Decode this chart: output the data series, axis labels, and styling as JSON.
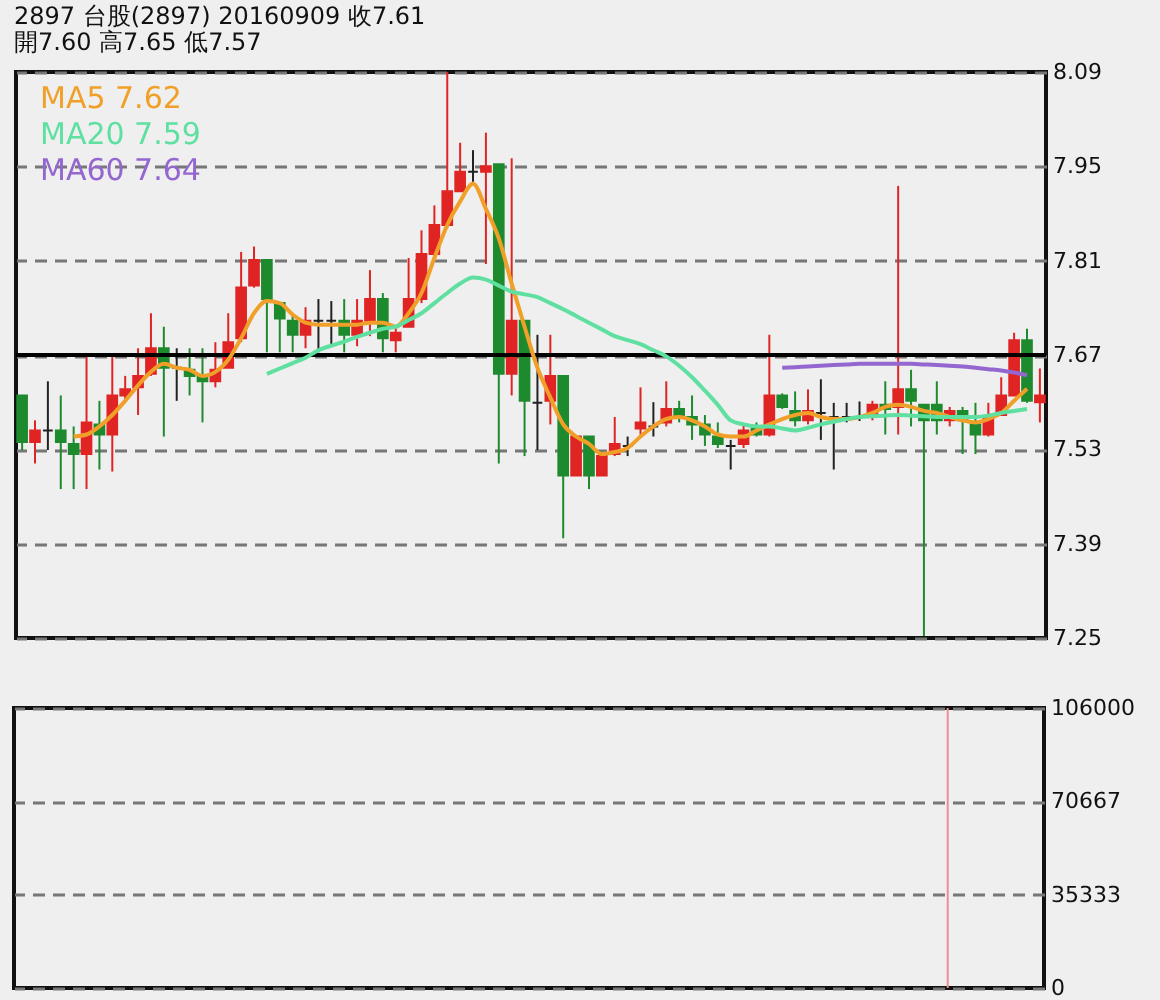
{
  "chart_data": [
    {
      "type": "candlestick",
      "title": "2897  台股(2897) 20160909    收7.61",
      "subtitle": "開7.60    高7.65    低7.57",
      "categories": [
        null,
        null,
        null,
        null,
        null,
        null,
        null,
        null,
        null,
        null,
        null,
        null,
        null,
        null,
        null,
        null,
        null,
        null,
        null,
        null,
        null,
        null,
        null,
        null,
        null,
        null,
        null,
        null,
        null,
        null,
        null,
        null,
        null,
        null,
        null,
        null,
        null,
        null,
        null,
        null,
        null,
        null,
        null,
        null,
        null,
        null,
        null,
        null,
        null,
        null,
        null,
        null,
        null,
        null,
        null,
        null,
        null,
        null,
        null,
        null,
        null,
        null,
        null,
        null,
        null,
        null,
        null,
        null,
        null,
        null,
        null,
        null,
        null,
        null,
        null,
        null,
        null,
        null,
        null,
        null
      ],
      "ohlc": [
        [
          7.61,
          7.61,
          7.529,
          7.541
        ],
        [
          7.541,
          7.573,
          7.509,
          7.558
        ],
        [
          7.558,
          7.631,
          7.529,
          7.558
        ],
        [
          7.558,
          7.61,
          7.471,
          7.541
        ],
        [
          7.538,
          7.564,
          7.471,
          7.523
        ],
        [
          7.523,
          7.668,
          7.471,
          7.57
        ],
        [
          7.567,
          7.602,
          7.5,
          7.552
        ],
        [
          7.552,
          7.668,
          7.497,
          7.61
        ],
        [
          7.61,
          7.639,
          7.602,
          7.619
        ],
        [
          7.622,
          7.68,
          7.581,
          7.639
        ],
        [
          7.642,
          7.732,
          7.639,
          7.68
        ],
        [
          7.68,
          7.712,
          7.549,
          7.651
        ],
        [
          7.651,
          7.68,
          7.602,
          7.651
        ],
        [
          7.648,
          7.68,
          7.61,
          7.639
        ],
        [
          7.639,
          7.68,
          7.57,
          7.631
        ],
        [
          7.631,
          7.689,
          7.622,
          7.648
        ],
        [
          7.651,
          7.732,
          7.651,
          7.689
        ],
        [
          7.695,
          7.823,
          7.689,
          7.77
        ],
        [
          7.773,
          7.831,
          7.77,
          7.811
        ],
        [
          7.811,
          7.811,
          7.674,
          7.753
        ],
        [
          7.747,
          7.747,
          7.674,
          7.724
        ],
        [
          7.721,
          7.732,
          7.674,
          7.7
        ],
        [
          7.7,
          7.741,
          7.68,
          7.721
        ],
        [
          7.721,
          7.753,
          7.674,
          7.721
        ],
        [
          7.721,
          7.75,
          7.683,
          7.721
        ],
        [
          7.721,
          7.753,
          7.674,
          7.7
        ],
        [
          7.7,
          7.753,
          7.683,
          7.721
        ],
        [
          7.721,
          7.796,
          7.698,
          7.753
        ],
        [
          7.753,
          7.762,
          7.674,
          7.695
        ],
        [
          7.692,
          7.712,
          7.674,
          7.703
        ],
        [
          7.712,
          7.814,
          7.712,
          7.753
        ],
        [
          7.753,
          7.855,
          7.747,
          7.82
        ],
        [
          7.82,
          7.892,
          7.814,
          7.863
        ],
        [
          7.863,
          8.09,
          7.858,
          7.913
        ],
        [
          7.913,
          7.985,
          7.913,
          7.942
        ],
        [
          7.942,
          7.974,
          7.927,
          7.942
        ],
        [
          7.942,
          8.0,
          7.805,
          7.95
        ],
        [
          7.953,
          7.953,
          7.509,
          7.642
        ],
        [
          7.642,
          7.962,
          7.61,
          7.721
        ],
        [
          7.721,
          7.721,
          7.52,
          7.602
        ],
        [
          7.599,
          7.7,
          7.529,
          7.599
        ],
        [
          7.602,
          7.7,
          7.567,
          7.639
        ],
        [
          7.639,
          7.639,
          7.398,
          7.491
        ],
        [
          7.491,
          7.549,
          7.491,
          7.549
        ],
        [
          7.549,
          7.549,
          7.471,
          7.491
        ],
        [
          7.491,
          7.52,
          7.491,
          7.52
        ],
        [
          7.523,
          7.578,
          7.52,
          7.538
        ],
        [
          7.535,
          7.549,
          7.52,
          7.535
        ],
        [
          7.561,
          7.622,
          7.552,
          7.57
        ],
        [
          7.564,
          7.6,
          7.549,
          7.564
        ],
        [
          7.57,
          7.631,
          7.564,
          7.59
        ],
        [
          7.59,
          7.602,
          7.57,
          7.581
        ],
        [
          7.578,
          7.61,
          7.544,
          7.567
        ],
        [
          7.567,
          7.581,
          7.535,
          7.552
        ],
        [
          7.549,
          7.57,
          7.532,
          7.538
        ],
        [
          7.535,
          7.544,
          7.5,
          7.535
        ],
        [
          7.538,
          7.567,
          7.532,
          7.558
        ],
        [
          7.561,
          7.57,
          7.549,
          7.552
        ],
        [
          7.552,
          7.7,
          7.549,
          7.61
        ],
        [
          7.61,
          7.613,
          7.59,
          7.593
        ],
        [
          7.587,
          7.616,
          7.564,
          7.573
        ],
        [
          7.573,
          7.619,
          7.567,
          7.587
        ],
        [
          7.584,
          7.634,
          7.544,
          7.584
        ],
        [
          7.578,
          7.599,
          7.5,
          7.578
        ],
        [
          7.578,
          7.599,
          7.57,
          7.578
        ],
        [
          7.578,
          7.601,
          7.572,
          7.578
        ],
        [
          7.578,
          7.602,
          7.573,
          7.596
        ],
        [
          7.596,
          7.631,
          7.552,
          7.59
        ],
        [
          7.593,
          7.921,
          7.552,
          7.619
        ],
        [
          7.619,
          7.648,
          7.564,
          7.602
        ],
        [
          7.596,
          7.596,
          7.253,
          7.573
        ],
        [
          7.596,
          7.631,
          7.552,
          7.573
        ],
        [
          7.573,
          7.593,
          7.564,
          7.587
        ],
        [
          7.587,
          7.593,
          7.523,
          7.573
        ],
        [
          7.567,
          7.599,
          7.523,
          7.552
        ],
        [
          7.552,
          7.599,
          7.549,
          7.578
        ],
        [
          7.581,
          7.637,
          7.581,
          7.61
        ],
        [
          7.61,
          7.703,
          7.61,
          7.692
        ],
        [
          7.692,
          7.709,
          7.599,
          7.602
        ],
        [
          7.6,
          7.65,
          7.57,
          7.61
        ]
      ],
      "colors": [
        "#1e8a2e",
        "#e02424",
        "#222222",
        "#1e8a2e",
        "#1e8a2e",
        "#e02424",
        "#1e8a2e",
        "#e02424",
        "#e02424",
        "#e02424",
        "#e02424",
        "#1e8a2e",
        "#222222",
        "#1e8a2e",
        "#1e8a2e",
        "#e02424",
        "#e02424",
        "#e02424",
        "#e02424",
        "#1e8a2e",
        "#1e8a2e",
        "#1e8a2e",
        "#e02424",
        "#222222",
        "#222222",
        "#1e8a2e",
        "#e02424",
        "#e02424",
        "#1e8a2e",
        "#e02424",
        "#e02424",
        "#e02424",
        "#e02424",
        "#e02424",
        "#e02424",
        "#222222",
        "#e02424",
        "#1e8a2e",
        "#e02424",
        "#1e8a2e",
        "#222222",
        "#e02424",
        "#1e8a2e",
        "#e02424",
        "#1e8a2e",
        "#e02424",
        "#e02424",
        "#222222",
        "#e02424",
        "#222222",
        "#e02424",
        "#1e8a2e",
        "#1e8a2e",
        "#1e8a2e",
        "#1e8a2e",
        "#222222",
        "#e02424",
        "#1e8a2e",
        "#e02424",
        "#1e8a2e",
        "#1e8a2e",
        "#e02424",
        "#222222",
        "#222222",
        "#222222",
        "#222222",
        "#e02424",
        "#1e8a2e",
        "#e02424",
        "#1e8a2e",
        "#1e8a2e",
        "#1e8a2e",
        "#e02424",
        "#1e8a2e",
        "#1e8a2e",
        "#e02424",
        "#e02424",
        "#e02424",
        "#1e8a2e",
        "#e02424"
      ],
      "series": [
        {
          "name": "MA5 7.62",
          "type": "line",
          "color": "#f0a028",
          "values": [
            null,
            null,
            null,
            null,
            7.549,
            7.552,
            7.564,
            7.581,
            7.602,
            7.625,
            7.645,
            7.657,
            7.651,
            7.648,
            7.639,
            7.645,
            7.663,
            7.695,
            7.732,
            7.75,
            7.747,
            7.73,
            7.718,
            7.715,
            7.715,
            7.715,
            7.715,
            7.718,
            7.718,
            7.712,
            7.732,
            7.762,
            7.814,
            7.863,
            7.898,
            7.924,
            7.887,
            7.843,
            7.776,
            7.712,
            7.651,
            7.607,
            7.567,
            7.549,
            7.538,
            7.523,
            7.526,
            7.532,
            7.549,
            7.564,
            7.575,
            7.578,
            7.573,
            7.564,
            7.552,
            7.549,
            7.549,
            7.558,
            7.567,
            7.575,
            7.581,
            7.584,
            7.578,
            7.575,
            7.575,
            7.578,
            7.584,
            7.593,
            7.596,
            7.593,
            7.587,
            7.584,
            7.578,
            7.573,
            7.57,
            7.575,
            7.584,
            7.602,
            7.62,
            null
          ]
        },
        {
          "name": "MA20 7.59",
          "type": "line",
          "color": "#5fe0a0",
          "values": [
            null,
            null,
            null,
            null,
            null,
            null,
            null,
            null,
            null,
            null,
            null,
            null,
            null,
            null,
            null,
            null,
            null,
            null,
            null,
            7.642,
            7.65,
            7.658,
            7.666,
            7.677,
            7.684,
            7.69,
            7.697,
            7.703,
            7.709,
            7.712,
            7.722,
            7.732,
            7.747,
            7.762,
            7.776,
            7.785,
            7.782,
            7.773,
            7.764,
            7.76,
            7.756,
            7.747,
            7.738,
            7.728,
            7.718,
            7.708,
            7.698,
            7.692,
            7.686,
            7.677,
            7.668,
            7.654,
            7.637,
            7.617,
            7.596,
            7.573,
            7.567,
            7.564,
            7.564,
            7.561,
            7.558,
            7.562,
            7.567,
            7.571,
            7.575,
            7.578,
            7.579,
            7.58,
            7.581,
            7.58,
            7.579,
            7.578,
            7.578,
            7.578,
            7.578,
            7.58,
            7.584,
            7.587,
            7.59,
            null
          ]
        },
        {
          "name": "MA60 7.64",
          "type": "line",
          "color": "#9466d0",
          "values": [
            null,
            null,
            null,
            null,
            null,
            null,
            null,
            null,
            null,
            null,
            null,
            null,
            null,
            null,
            null,
            null,
            null,
            null,
            null,
            null,
            null,
            null,
            null,
            null,
            null,
            null,
            null,
            null,
            null,
            null,
            null,
            null,
            null,
            null,
            null,
            null,
            null,
            null,
            null,
            null,
            null,
            null,
            null,
            null,
            null,
            null,
            null,
            null,
            null,
            null,
            null,
            null,
            null,
            null,
            null,
            null,
            null,
            null,
            null,
            7.651,
            7.652,
            7.653,
            7.654,
            7.655,
            7.656,
            7.657,
            7.657,
            7.657,
            7.657,
            7.657,
            7.656,
            7.655,
            7.654,
            7.653,
            7.651,
            7.649,
            7.647,
            7.644,
            7.64,
            null
          ]
        }
      ],
      "ylim": [
        7.25,
        8.09
      ],
      "yticks": [
        7.25,
        7.39,
        7.53,
        7.67,
        7.81,
        7.95,
        8.09
      ],
      "grid": "y",
      "tick_labels": "y",
      "ref_lines": [
        {
          "axis": "y",
          "value": 7.67,
          "color": "#000000",
          "line_style": "solid"
        }
      ]
    },
    {
      "type": "bar",
      "categories": [
        null,
        null,
        null,
        null,
        null,
        null,
        null,
        null,
        null,
        null,
        null,
        null,
        null,
        null,
        null,
        null,
        null,
        null,
        null,
        null,
        null,
        null,
        null,
        null,
        null,
        null,
        null,
        null,
        null,
        null,
        null,
        null,
        null,
        null,
        null,
        null,
        null,
        null,
        null,
        null,
        null,
        null,
        null,
        null,
        null,
        null,
        null,
        null,
        null,
        null,
        null,
        null,
        null,
        null,
        null,
        null,
        null,
        null,
        null,
        null,
        null,
        null,
        null,
        null,
        null,
        null,
        null,
        null,
        null,
        null,
        null,
        null,
        null,
        null,
        null,
        null,
        null,
        null,
        null,
        null
      ],
      "values": [
        null,
        null,
        null,
        null,
        null,
        null,
        null,
        null,
        null,
        null,
        null,
        null,
        null,
        null,
        null,
        null,
        null,
        null,
        null,
        null,
        null,
        null,
        null,
        null,
        null,
        null,
        null,
        null,
        null,
        null,
        null,
        null,
        null,
        null,
        null,
        null,
        null,
        null,
        null,
        null,
        null,
        null,
        null,
        null,
        null,
        null,
        null,
        null,
        null,
        null,
        null,
        null,
        null,
        null,
        null,
        null,
        null,
        null,
        null,
        null,
        null,
        null,
        null,
        null,
        null,
        null,
        null,
        null,
        null,
        null,
        null,
        null,
        106000,
        null,
        null,
        null,
        null,
        null,
        null,
        null
      ],
      "color": "#f08c96",
      "ylim": [
        0,
        106000
      ],
      "yticks": [
        0,
        35333,
        70667,
        106000
      ],
      "grid": "y",
      "tick_labels": "y"
    }
  ]
}
